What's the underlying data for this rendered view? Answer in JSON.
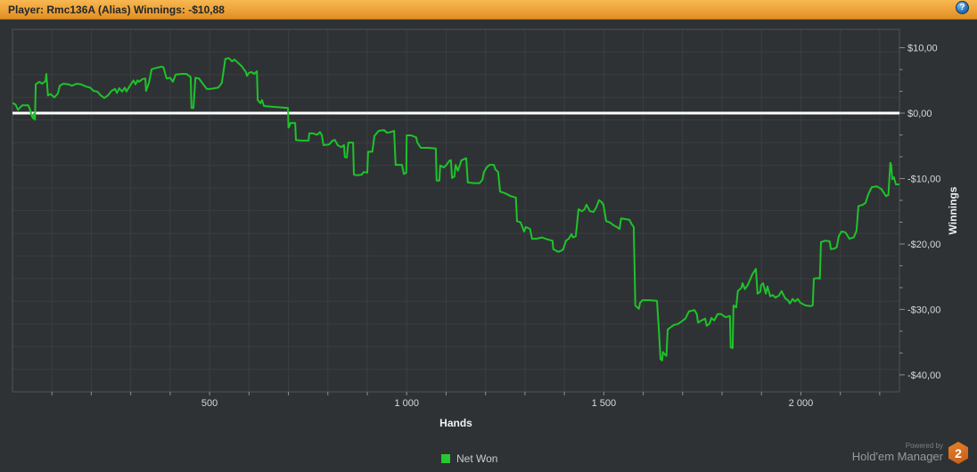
{
  "topbar": {
    "player_label": "Player:",
    "player_value": "Rmc136A (Alias)",
    "winnings_label": "Winnings:",
    "winnings_value": "-$10,88"
  },
  "icons": {
    "help_glyph": "?"
  },
  "legend": {
    "items": [
      {
        "label": "Net Won",
        "color": "#1ec32a"
      }
    ]
  },
  "footer": {
    "powered_by": "Powered by",
    "brand": "Hold'em Manager",
    "logo_text": "2"
  },
  "colors": {
    "topbar_orange": "#eda238",
    "background": "#2f3235",
    "gridline": "#3b3e41",
    "plot_border": "#505356",
    "zero_line": "#ffffff",
    "series_green": "#1ec32a",
    "tick_text": "#d6d8da",
    "axis_title_text": "#eef0f2"
  },
  "chart_data": {
    "type": "line",
    "title": "",
    "xlabel": "Hands",
    "ylabel": "Winnings",
    "xlim": [
      0,
      2250
    ],
    "ylim": [
      -42.6,
      12.8
    ],
    "grid": true,
    "legend_position": "bottom-center",
    "zero_line_value": 0,
    "x_minor_step": 100,
    "x_ticks": [
      {
        "value": 500,
        "label": "500"
      },
      {
        "value": 1000,
        "label": "1 000"
      },
      {
        "value": 1500,
        "label": "1 500"
      },
      {
        "value": 2000,
        "label": "2 000"
      }
    ],
    "y_ticks": [
      {
        "value": 10,
        "label": "$10,00"
      },
      {
        "value": 0,
        "label": "$0,00"
      },
      {
        "value": -10,
        "label": "-$10,00"
      },
      {
        "value": -20,
        "label": "-$20,00"
      },
      {
        "value": -30,
        "label": "-$30,00"
      },
      {
        "value": -40,
        "label": "-$40,00"
      }
    ],
    "series": [
      {
        "name": "Net Won",
        "color": "#1ec32a",
        "points": [
          [
            2,
            1.5
          ],
          [
            8,
            1.3
          ],
          [
            14,
            0.5
          ],
          [
            20,
            0.9
          ],
          [
            25,
            1.2
          ],
          [
            40,
            1.2
          ],
          [
            45,
            0.5
          ],
          [
            48,
            -0.3
          ],
          [
            52,
            -0.8
          ],
          [
            54,
            -0.1
          ],
          [
            57,
            -1.0
          ],
          [
            59,
            4.4
          ],
          [
            68,
            4.8
          ],
          [
            75,
            4.5
          ],
          [
            84,
            4.9
          ],
          [
            86,
            6.0
          ],
          [
            90,
            2.7
          ],
          [
            97,
            2.9
          ],
          [
            106,
            2.4
          ],
          [
            115,
            3.0
          ],
          [
            120,
            4.2
          ],
          [
            129,
            4.5
          ],
          [
            142,
            4.4
          ],
          [
            151,
            4.2
          ],
          [
            163,
            4.5
          ],
          [
            174,
            4.4
          ],
          [
            185,
            4.1
          ],
          [
            197,
            3.9
          ],
          [
            206,
            3.4
          ],
          [
            215,
            3.3
          ],
          [
            224,
            2.7
          ],
          [
            233,
            2.3
          ],
          [
            242,
            2.7
          ],
          [
            251,
            3.4
          ],
          [
            260,
            3.7
          ],
          [
            265,
            3.1
          ],
          [
            271,
            3.8
          ],
          [
            278,
            3.3
          ],
          [
            285,
            3.9
          ],
          [
            289,
            3.3
          ],
          [
            298,
            4.2
          ],
          [
            307,
            5.0
          ],
          [
            312,
            4.4
          ],
          [
            317,
            5.0
          ],
          [
            321,
            4.8
          ],
          [
            330,
            5.2
          ],
          [
            337,
            5.3
          ],
          [
            339,
            3.4
          ],
          [
            346,
            4.6
          ],
          [
            353,
            6.7
          ],
          [
            364,
            6.9
          ],
          [
            378,
            7.1
          ],
          [
            383,
            7.0
          ],
          [
            391,
            5.3
          ],
          [
            400,
            5.4
          ],
          [
            407,
            4.8
          ],
          [
            414,
            5.9
          ],
          [
            430,
            6.0
          ],
          [
            441,
            6.0
          ],
          [
            448,
            5.7
          ],
          [
            452,
            5.5
          ],
          [
            454,
            0.8
          ],
          [
            459,
            0.8
          ],
          [
            464,
            5.4
          ],
          [
            473,
            5.3
          ],
          [
            484,
            4.4
          ],
          [
            493,
            3.7
          ],
          [
            502,
            3.7
          ],
          [
            522,
            3.9
          ],
          [
            531,
            4.6
          ],
          [
            540,
            8.3
          ],
          [
            549,
            8.4
          ],
          [
            557,
            7.9
          ],
          [
            563,
            8.2
          ],
          [
            570,
            7.8
          ],
          [
            581,
            7.2
          ],
          [
            592,
            6.3
          ],
          [
            595,
            5.7
          ],
          [
            599,
            6.1
          ],
          [
            606,
            6.3
          ],
          [
            613,
            6.0
          ],
          [
            620,
            6.4
          ],
          [
            622,
            2.0
          ],
          [
            629,
            1.5
          ],
          [
            633,
            2.0
          ],
          [
            638,
            1.1
          ],
          [
            656,
            1.0
          ],
          [
            699,
            0.8
          ],
          [
            700,
            -2.2
          ],
          [
            703,
            -1.9
          ],
          [
            705,
            -1.5
          ],
          [
            717,
            -1.5
          ],
          [
            719,
            -4.1
          ],
          [
            733,
            -4.2
          ],
          [
            751,
            -4.2
          ],
          [
            753,
            -3.1
          ],
          [
            762,
            -3.1
          ],
          [
            773,
            -3.3
          ],
          [
            780,
            -2.9
          ],
          [
            785,
            -3.4
          ],
          [
            789,
            -4.9
          ],
          [
            803,
            -4.8
          ],
          [
            812,
            -4.2
          ],
          [
            818,
            -4.1
          ],
          [
            825,
            -4.9
          ],
          [
            834,
            -5.2
          ],
          [
            841,
            -4.9
          ],
          [
            843,
            -6.7
          ],
          [
            848,
            -6.8
          ],
          [
            852,
            -4.5
          ],
          [
            864,
            -4.5
          ],
          [
            866,
            -9.4
          ],
          [
            875,
            -9.5
          ],
          [
            886,
            -9.4
          ],
          [
            891,
            -9.0
          ],
          [
            900,
            -9.1
          ],
          [
            902,
            -5.9
          ],
          [
            913,
            -5.9
          ],
          [
            918,
            -3.5
          ],
          [
            929,
            -2.7
          ],
          [
            943,
            -2.6
          ],
          [
            950,
            -3.0
          ],
          [
            959,
            -2.9
          ],
          [
            968,
            -2.7
          ],
          [
            972,
            -7.9
          ],
          [
            988,
            -7.9
          ],
          [
            993,
            -9.3
          ],
          [
            999,
            -9.1
          ],
          [
            1000,
            -3.4
          ],
          [
            1011,
            -3.4
          ],
          [
            1024,
            -3.7
          ],
          [
            1027,
            -4.5
          ],
          [
            1036,
            -5.3
          ],
          [
            1056,
            -5.3
          ],
          [
            1074,
            -5.4
          ],
          [
            1076,
            -10.3
          ],
          [
            1083,
            -10.3
          ],
          [
            1085,
            -8.0
          ],
          [
            1094,
            -8.3
          ],
          [
            1101,
            -7.9
          ],
          [
            1108,
            -7.3
          ],
          [
            1112,
            -7.2
          ],
          [
            1115,
            -9.9
          ],
          [
            1121,
            -9.7
          ],
          [
            1124,
            -7.9
          ],
          [
            1130,
            -8.8
          ],
          [
            1139,
            -7.2
          ],
          [
            1151,
            -6.9
          ],
          [
            1155,
            -10.6
          ],
          [
            1169,
            -10.7
          ],
          [
            1185,
            -10.7
          ],
          [
            1192,
            -10.2
          ],
          [
            1196,
            -9.0
          ],
          [
            1203,
            -8.3
          ],
          [
            1210,
            -7.9
          ],
          [
            1221,
            -7.9
          ],
          [
            1225,
            -8.6
          ],
          [
            1232,
            -9.0
          ],
          [
            1237,
            -12.0
          ],
          [
            1248,
            -12.2
          ],
          [
            1264,
            -12.7
          ],
          [
            1277,
            -12.9
          ],
          [
            1280,
            -16.5
          ],
          [
            1289,
            -16.7
          ],
          [
            1298,
            -18.1
          ],
          [
            1302,
            -17.4
          ],
          [
            1313,
            -17.7
          ],
          [
            1318,
            -19.2
          ],
          [
            1329,
            -19.2
          ],
          [
            1343,
            -19.0
          ],
          [
            1357,
            -19.3
          ],
          [
            1370,
            -19.5
          ],
          [
            1372,
            -20.8
          ],
          [
            1384,
            -21.2
          ],
          [
            1393,
            -21.0
          ],
          [
            1397,
            -20.8
          ],
          [
            1404,
            -19.5
          ],
          [
            1411,
            -19.2
          ],
          [
            1418,
            -18.5
          ],
          [
            1422,
            -19.0
          ],
          [
            1429,
            -18.8
          ],
          [
            1436,
            -14.7
          ],
          [
            1445,
            -15.0
          ],
          [
            1451,
            -14.7
          ],
          [
            1456,
            -14.0
          ],
          [
            1465,
            -15.0
          ],
          [
            1474,
            -15.1
          ],
          [
            1481,
            -14.4
          ],
          [
            1488,
            -13.3
          ],
          [
            1494,
            -13.6
          ],
          [
            1499,
            -14.0
          ],
          [
            1506,
            -16.5
          ],
          [
            1515,
            -16.7
          ],
          [
            1524,
            -17.1
          ],
          [
            1533,
            -17.4
          ],
          [
            1540,
            -17.7
          ],
          [
            1544,
            -16.1
          ],
          [
            1556,
            -16.2
          ],
          [
            1565,
            -16.3
          ],
          [
            1571,
            -17.0
          ],
          [
            1576,
            -17.4
          ],
          [
            1578,
            -23.1
          ],
          [
            1580,
            -29.4
          ],
          [
            1585,
            -29.7
          ],
          [
            1589,
            -29.9
          ],
          [
            1592,
            -29.0
          ],
          [
            1598,
            -28.6
          ],
          [
            1617,
            -28.6
          ],
          [
            1635,
            -28.7
          ],
          [
            1639,
            -32.4
          ],
          [
            1644,
            -37.6
          ],
          [
            1648,
            -37.8
          ],
          [
            1650,
            -36.5
          ],
          [
            1655,
            -36.9
          ],
          [
            1659,
            -37.1
          ],
          [
            1662,
            -33.1
          ],
          [
            1668,
            -32.8
          ],
          [
            1677,
            -32.4
          ],
          [
            1689,
            -32.2
          ],
          [
            1698,
            -31.8
          ],
          [
            1707,
            -31.4
          ],
          [
            1716,
            -30.3
          ],
          [
            1730,
            -30.1
          ],
          [
            1736,
            -30.7
          ],
          [
            1739,
            -32.0
          ],
          [
            1748,
            -31.7
          ],
          [
            1757,
            -31.4
          ],
          [
            1761,
            -32.5
          ],
          [
            1768,
            -32.2
          ],
          [
            1773,
            -31.3
          ],
          [
            1780,
            -31.7
          ],
          [
            1789,
            -30.7
          ],
          [
            1797,
            -30.7
          ],
          [
            1809,
            -31.2
          ],
          [
            1820,
            -31.0
          ],
          [
            1822,
            -35.8
          ],
          [
            1827,
            -35.9
          ],
          [
            1829,
            -29.4
          ],
          [
            1836,
            -29.7
          ],
          [
            1840,
            -27.2
          ],
          [
            1849,
            -26.7
          ],
          [
            1852,
            -26.0
          ],
          [
            1858,
            -26.9
          ],
          [
            1865,
            -26.3
          ],
          [
            1870,
            -25.6
          ],
          [
            1877,
            -24.6
          ],
          [
            1886,
            -23.8
          ],
          [
            1890,
            -27.6
          ],
          [
            1897,
            -27.3
          ],
          [
            1899,
            -26.3
          ],
          [
            1904,
            -26.0
          ],
          [
            1911,
            -27.6
          ],
          [
            1915,
            -26.5
          ],
          [
            1922,
            -28.0
          ],
          [
            1929,
            -27.8
          ],
          [
            1935,
            -28.2
          ],
          [
            1944,
            -27.9
          ],
          [
            1951,
            -27.2
          ],
          [
            1960,
            -28.3
          ],
          [
            1967,
            -28.6
          ],
          [
            1972,
            -29.1
          ],
          [
            1979,
            -28.4
          ],
          [
            1985,
            -28.8
          ],
          [
            1992,
            -28.4
          ],
          [
            1999,
            -29.0
          ],
          [
            2012,
            -29.4
          ],
          [
            2024,
            -29.5
          ],
          [
            2030,
            -29.4
          ],
          [
            2033,
            -25.3
          ],
          [
            2044,
            -25.2
          ],
          [
            2048,
            -25.3
          ],
          [
            2051,
            -19.7
          ],
          [
            2062,
            -19.5
          ],
          [
            2073,
            -19.6
          ],
          [
            2076,
            -20.8
          ],
          [
            2085,
            -20.7
          ],
          [
            2091,
            -20.5
          ],
          [
            2096,
            -18.8
          ],
          [
            2103,
            -18.1
          ],
          [
            2112,
            -18.2
          ],
          [
            2116,
            -18.5
          ],
          [
            2123,
            -19.2
          ],
          [
            2134,
            -19.0
          ],
          [
            2141,
            -18.0
          ],
          [
            2146,
            -14.2
          ],
          [
            2157,
            -14.0
          ],
          [
            2164,
            -13.7
          ],
          [
            2171,
            -12.4
          ],
          [
            2180,
            -11.3
          ],
          [
            2193,
            -11.2
          ],
          [
            2204,
            -11.6
          ],
          [
            2216,
            -12.7
          ],
          [
            2222,
            -12.5
          ],
          [
            2227,
            -7.6
          ],
          [
            2229,
            -7.9
          ],
          [
            2232,
            -10.1
          ],
          [
            2236,
            -9.8
          ],
          [
            2241,
            -10.9
          ],
          [
            2248,
            -10.88
          ]
        ]
      }
    ]
  }
}
